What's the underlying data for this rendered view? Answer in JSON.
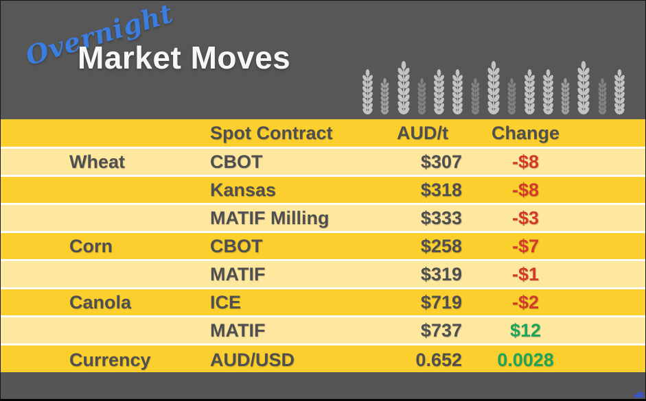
{
  "header": {
    "script_label": "Overnight",
    "title": "Market Moves",
    "accent_blue": "#3A7EE2",
    "background": "#575757"
  },
  "decor": {
    "wheat_icon": "wheat-ear",
    "wheat_tone_colors": {
      "light": "#C4C4C4",
      "mid": "#9EA0A0",
      "faint": "#828282"
    },
    "wheat_stalks": [
      {
        "size": "medium",
        "tone": "light"
      },
      {
        "size": "small",
        "tone": "mid"
      },
      {
        "size": "large",
        "tone": "light"
      },
      {
        "size": "small",
        "tone": "faint"
      },
      {
        "size": "medium",
        "tone": "light"
      },
      {
        "size": "medium",
        "tone": "light"
      },
      {
        "size": "small",
        "tone": "faint"
      },
      {
        "size": "large",
        "tone": "light"
      },
      {
        "size": "small",
        "tone": "faint"
      },
      {
        "size": "medium",
        "tone": "light"
      },
      {
        "size": "medium",
        "tone": "light"
      },
      {
        "size": "small",
        "tone": "mid"
      },
      {
        "size": "large",
        "tone": "light"
      },
      {
        "size": "small",
        "tone": "faint"
      },
      {
        "size": "medium",
        "tone": "light"
      }
    ],
    "logo_mark_color": "#3A56C5"
  },
  "colors": {
    "row_gold": "#FBCF2D",
    "row_light": "#FEE79E",
    "text_dark": "#4F4F51",
    "change_negative": "#D43A28",
    "change_positive": "#1FA45A"
  },
  "chart_data": {
    "type": "table",
    "title": "Overnight Market Moves",
    "columns": [
      "",
      "Spot Contract",
      "AUD/t",
      "Change"
    ],
    "rows": [
      {
        "commodity": "Wheat",
        "contract": "CBOT",
        "price": "$307",
        "change": "-$8",
        "change_positive": false,
        "tone": "light"
      },
      {
        "commodity": "",
        "contract": "Kansas",
        "price": "$318",
        "change": "-$8",
        "change_positive": false,
        "tone": "gold"
      },
      {
        "commodity": "",
        "contract": "MATIF Milling",
        "price": "$333",
        "change": "-$3",
        "change_positive": false,
        "tone": "light"
      },
      {
        "commodity": "Corn",
        "contract": "CBOT",
        "price": "$258",
        "change": "-$7",
        "change_positive": false,
        "tone": "gold"
      },
      {
        "commodity": "",
        "contract": "MATIF",
        "price": "$319",
        "change": "-$1",
        "change_positive": false,
        "tone": "light"
      },
      {
        "commodity": "Canola",
        "contract": "ICE",
        "price": "$719",
        "change": "-$2",
        "change_positive": false,
        "tone": "gold"
      },
      {
        "commodity": "",
        "contract": "MATIF",
        "price": "$737",
        "change": "$12",
        "change_positive": true,
        "tone": "light"
      },
      {
        "commodity": "Currency",
        "contract": "AUD/USD",
        "price": "0.652",
        "change": "0.0028",
        "change_positive": true,
        "tone": "gold"
      }
    ]
  }
}
